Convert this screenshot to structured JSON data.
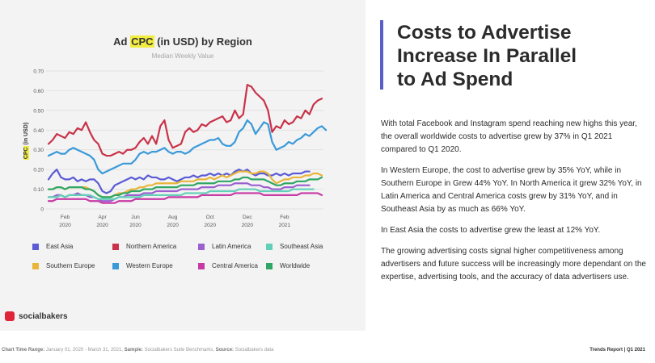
{
  "chart_data": {
    "type": "line",
    "title_prefix": "Ad ",
    "title_highlight": "CPC",
    "title_suffix": " (in USD) by Region",
    "subtitle": "Median Weekly Value",
    "ylabel_highlight": "CPC",
    "ylabel_suffix": " (in USD)",
    "ylim": [
      0,
      0.7
    ],
    "yticks": [
      {
        "value": 0.7,
        "label": "0.70"
      },
      {
        "value": 0.6,
        "label": "0.60"
      },
      {
        "value": 0.5,
        "label": "0.50"
      },
      {
        "value": 0.4,
        "label": "0.40"
      },
      {
        "value": 0.3,
        "label": "0.30"
      },
      {
        "value": 0.2,
        "label": "0.20"
      },
      {
        "value": 0.1,
        "label": "0.10"
      },
      {
        "value": 0,
        "label": "0"
      }
    ],
    "xticks": [
      {
        "week": 4,
        "line1": "Feb",
        "line2": "2020"
      },
      {
        "week": 13,
        "line1": "Apr",
        "line2": "2020"
      },
      {
        "week": 21,
        "line1": "Jun",
        "line2": "2020"
      },
      {
        "week": 30,
        "line1": "Aug",
        "line2": "2020"
      },
      {
        "week": 39,
        "line1": "Oct",
        "line2": "2020"
      },
      {
        "week": 48,
        "line1": "Dec",
        "line2": "2020"
      },
      {
        "week": 57,
        "line1": "Feb",
        "line2": "2021"
      }
    ],
    "series": [
      {
        "name": "East Asia",
        "color": "#5b5bd6",
        "values": [
          0.15,
          0.18,
          0.2,
          0.16,
          0.15,
          0.15,
          0.16,
          0.14,
          0.15,
          0.14,
          0.15,
          0.15,
          0.13,
          0.09,
          0.08,
          0.09,
          0.12,
          0.13,
          0.14,
          0.15,
          0.16,
          0.15,
          0.16,
          0.15,
          0.17,
          0.16,
          0.16,
          0.15,
          0.15,
          0.16,
          0.15,
          0.14,
          0.15,
          0.16,
          0.16,
          0.17,
          0.16,
          0.17,
          0.17,
          0.18,
          0.17,
          0.18,
          0.17,
          0.18,
          0.17,
          0.19,
          0.2,
          0.19,
          0.2,
          0.18,
          0.17,
          0.18,
          0.18,
          0.17,
          0.17,
          0.18,
          0.17,
          0.18,
          0.17,
          0.18,
          0.18,
          0.18,
          0.19,
          0.19
        ]
      },
      {
        "name": "Northern America",
        "color": "#c8334a",
        "values": [
          0.33,
          0.35,
          0.38,
          0.37,
          0.36,
          0.39,
          0.38,
          0.41,
          0.4,
          0.44,
          0.39,
          0.35,
          0.33,
          0.28,
          0.27,
          0.27,
          0.28,
          0.29,
          0.28,
          0.3,
          0.3,
          0.31,
          0.34,
          0.36,
          0.33,
          0.37,
          0.33,
          0.42,
          0.45,
          0.35,
          0.31,
          0.32,
          0.33,
          0.39,
          0.41,
          0.39,
          0.4,
          0.43,
          0.42,
          0.44,
          0.45,
          0.46,
          0.47,
          0.44,
          0.45,
          0.5,
          0.46,
          0.48,
          0.63,
          0.62,
          0.59,
          0.57,
          0.55,
          0.5,
          0.39,
          0.42,
          0.41,
          0.45,
          0.43,
          0.44,
          0.47,
          0.46,
          0.5,
          0.48,
          0.53,
          0.55,
          0.56
        ]
      },
      {
        "name": "Latin America",
        "color": "#9b5fd0",
        "values": [
          0.06,
          0.06,
          0.07,
          0.07,
          0.06,
          0.07,
          0.07,
          0.08,
          0.07,
          0.07,
          0.06,
          0.06,
          0.05,
          0.04,
          0.04,
          0.04,
          0.05,
          0.06,
          0.06,
          0.07,
          0.07,
          0.07,
          0.07,
          0.08,
          0.08,
          0.08,
          0.09,
          0.09,
          0.09,
          0.09,
          0.09,
          0.09,
          0.1,
          0.1,
          0.1,
          0.1,
          0.1,
          0.11,
          0.11,
          0.11,
          0.11,
          0.12,
          0.12,
          0.12,
          0.12,
          0.13,
          0.13,
          0.13,
          0.13,
          0.12,
          0.12,
          0.12,
          0.11,
          0.11,
          0.1,
          0.1,
          0.1,
          0.11,
          0.11,
          0.11,
          0.12,
          0.12,
          0.12,
          0.12
        ]
      },
      {
        "name": "Southeast Asia",
        "color": "#62d0b8",
        "values": [
          0.06,
          0.06,
          0.06,
          0.07,
          0.06,
          0.07,
          0.07,
          0.07,
          0.07,
          0.07,
          0.07,
          0.06,
          0.05,
          0.05,
          0.05,
          0.05,
          0.05,
          0.06,
          0.06,
          0.06,
          0.06,
          0.06,
          0.06,
          0.07,
          0.07,
          0.07,
          0.07,
          0.07,
          0.07,
          0.07,
          0.07,
          0.07,
          0.07,
          0.08,
          0.08,
          0.08,
          0.08,
          0.08,
          0.08,
          0.09,
          0.09,
          0.09,
          0.09,
          0.09,
          0.09,
          0.09,
          0.1,
          0.1,
          0.1,
          0.1,
          0.1,
          0.09,
          0.09,
          0.09,
          0.09,
          0.09,
          0.09,
          0.09,
          0.09,
          0.1,
          0.1,
          0.1,
          0.1,
          0.1,
          0.1
        ]
      },
      {
        "name": "Southern Europe",
        "color": "#e8b53a",
        "values": [
          0.1,
          0.1,
          0.11,
          0.11,
          0.1,
          0.11,
          0.11,
          0.11,
          0.11,
          0.11,
          0.1,
          0.09,
          0.07,
          0.06,
          0.06,
          0.06,
          0.07,
          0.08,
          0.08,
          0.09,
          0.1,
          0.1,
          0.11,
          0.11,
          0.12,
          0.12,
          0.13,
          0.13,
          0.13,
          0.13,
          0.13,
          0.13,
          0.14,
          0.14,
          0.14,
          0.14,
          0.15,
          0.15,
          0.15,
          0.16,
          0.15,
          0.16,
          0.17,
          0.16,
          0.17,
          0.18,
          0.19,
          0.19,
          0.19,
          0.18,
          0.18,
          0.19,
          0.19,
          0.18,
          0.15,
          0.13,
          0.14,
          0.15,
          0.15,
          0.16,
          0.16,
          0.16,
          0.17,
          0.17,
          0.18,
          0.18,
          0.17
        ]
      },
      {
        "name": "Western Europe",
        "color": "#3a9ad9",
        "values": [
          0.27,
          0.28,
          0.29,
          0.28,
          0.28,
          0.3,
          0.31,
          0.3,
          0.29,
          0.28,
          0.27,
          0.25,
          0.2,
          0.18,
          0.19,
          0.2,
          0.21,
          0.22,
          0.23,
          0.23,
          0.23,
          0.25,
          0.28,
          0.29,
          0.28,
          0.29,
          0.29,
          0.3,
          0.31,
          0.29,
          0.28,
          0.29,
          0.29,
          0.28,
          0.29,
          0.31,
          0.32,
          0.33,
          0.34,
          0.35,
          0.35,
          0.36,
          0.33,
          0.32,
          0.32,
          0.34,
          0.39,
          0.41,
          0.45,
          0.43,
          0.38,
          0.41,
          0.44,
          0.43,
          0.34,
          0.3,
          0.31,
          0.32,
          0.34,
          0.33,
          0.35,
          0.36,
          0.38,
          0.37,
          0.39,
          0.41,
          0.42,
          0.4
        ]
      },
      {
        "name": "Central America",
        "color": "#c73aa5",
        "values": [
          0.04,
          0.04,
          0.05,
          0.05,
          0.05,
          0.05,
          0.05,
          0.05,
          0.05,
          0.05,
          0.04,
          0.04,
          0.04,
          0.03,
          0.03,
          0.03,
          0.03,
          0.04,
          0.04,
          0.04,
          0.04,
          0.05,
          0.05,
          0.05,
          0.05,
          0.05,
          0.05,
          0.05,
          0.05,
          0.06,
          0.06,
          0.06,
          0.06,
          0.06,
          0.06,
          0.06,
          0.06,
          0.07,
          0.07,
          0.07,
          0.07,
          0.07,
          0.07,
          0.07,
          0.07,
          0.08,
          0.08,
          0.08,
          0.08,
          0.08,
          0.08,
          0.08,
          0.07,
          0.07,
          0.07,
          0.07,
          0.07,
          0.07,
          0.07,
          0.07,
          0.07,
          0.08,
          0.08,
          0.08,
          0.08,
          0.08,
          0.07
        ]
      },
      {
        "name": "Worldwide",
        "color": "#2fa664",
        "values": [
          0.1,
          0.1,
          0.11,
          0.11,
          0.1,
          0.11,
          0.11,
          0.11,
          0.11,
          0.1,
          0.1,
          0.09,
          0.07,
          0.06,
          0.06,
          0.06,
          0.07,
          0.07,
          0.08,
          0.08,
          0.09,
          0.09,
          0.09,
          0.1,
          0.1,
          0.1,
          0.11,
          0.11,
          0.11,
          0.11,
          0.11,
          0.11,
          0.12,
          0.12,
          0.12,
          0.12,
          0.13,
          0.13,
          0.13,
          0.13,
          0.13,
          0.14,
          0.14,
          0.14,
          0.14,
          0.15,
          0.15,
          0.16,
          0.16,
          0.15,
          0.15,
          0.15,
          0.15,
          0.14,
          0.13,
          0.12,
          0.12,
          0.13,
          0.13,
          0.13,
          0.14,
          0.14,
          0.14,
          0.15,
          0.15,
          0.15,
          0.16
        ]
      }
    ]
  },
  "brand": {
    "name": "socialbakers",
    "color": "#e0243a"
  },
  "headline": {
    "line1": "Costs to Advertise",
    "line2": "Increase In Parallel",
    "line3": "to Ad Spend",
    "accent_color": "#5a5fc6"
  },
  "body": {
    "p1": "With total Facebook and Instagram spend reaching new highs this year, the overall worldwide costs to advertise grew by 37% in Q1 2021 compared to Q1 2020.",
    "p2": "In Western Europe, the cost to advertise grew by 35% YoY, while in Southern Europe in Grew 44% YoY. In North America it grew 32% YoY, in Latin America and Central America costs grew by 31% YoY, and in Southeast Asia by as much as 66% YoY.",
    "p3": "In East Asia the costs to advertise grew the least at 12% YoY.",
    "p4": "The growing advertising costs signal higher competitiveness among advertisers and future success will be increasingly more dependant on the expertise, advertising tools, and the accuracy of data advertisers use."
  },
  "footer": {
    "range_label": "Chart Time Range:",
    "range_value": " January 01, 2020 - March 31, 2021, ",
    "sample_label": "Sample:",
    "sample_value": " Socialbakers Suite Benchmarks, ",
    "source_label": "Source:",
    "source_value": " Socialbakers data",
    "right": "Trends Report | Q1 2021"
  }
}
